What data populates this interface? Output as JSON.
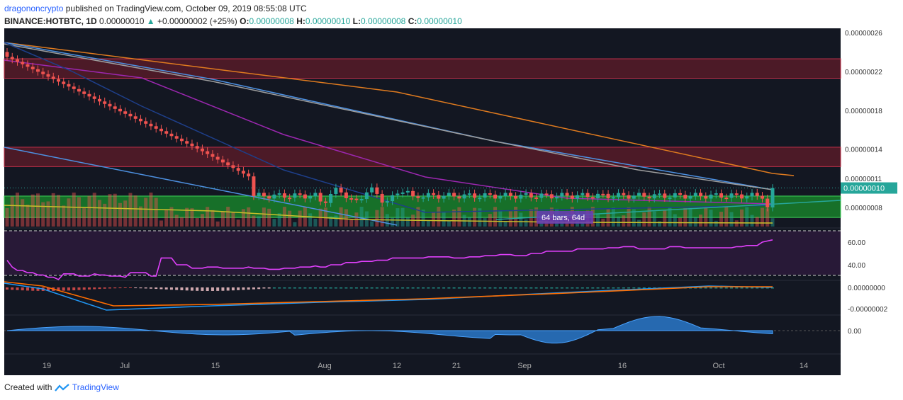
{
  "header": {
    "username": "dragononcrypto",
    "published_text": " published on TradingView.com, October 09, 2019 08:55:08 UTC",
    "symbol": "BINANCE:HOTBTC, 1D",
    "last": "0.00000010",
    "change": "+0.00000002 (+25%)",
    "o_label": "O:",
    "o_val": "0.00000008",
    "h_label": "H:",
    "h_val": "0.00000010",
    "l_label": "L:",
    "l_val": "0.00000008",
    "c_label": "C:",
    "c_val": "0.00000010",
    "change_color": "#26a69a"
  },
  "footer": {
    "created_with": "Created with",
    "brand": "TradingView"
  },
  "chart_data": [
    {
      "type": "candlestick",
      "pane": "price",
      "price_axis_labels": [
        "0.00000026",
        "0.00000022",
        "0.00000018",
        "0.00000014",
        "0.00000011",
        "0.00000008"
      ],
      "price_axis_values": [
        2.6e-07,
        2.2e-07,
        1.8e-07,
        1.4e-07,
        1.1e-07,
        8e-08
      ],
      "last_price_label": "0.00000010",
      "last_price_value": 1e-07,
      "x_tick_labels": [
        "19",
        "Jul",
        "15",
        "Aug",
        "12",
        "21",
        "Sep",
        "16",
        "Oct",
        "14"
      ],
      "annotation": "64 bars, 64d",
      "zones": [
        {
          "kind": "resistance",
          "from": 2.13e-07,
          "to": 2.33e-07,
          "color": "#7b1e2b"
        },
        {
          "kind": "resistance",
          "from": 1.22e-07,
          "to": 1.42e-07,
          "color": "#7b1e2b"
        },
        {
          "kind": "support",
          "from": 6.97e-08,
          "to": 9.17e-08,
          "color": "#1a8f2c"
        }
      ],
      "colors": {
        "up": "#26a69a",
        "down": "#ef5350",
        "background": "#131722"
      }
    },
    {
      "type": "line",
      "pane": "rsi",
      "axis_labels": [
        "60.00",
        "40.00"
      ],
      "axis_values": [
        60,
        40
      ],
      "series": [
        {
          "color": "#e040fb",
          "values": [
            44,
            38,
            35,
            35,
            33,
            33,
            31,
            31,
            29,
            29,
            27,
            32,
            32,
            32,
            30,
            30,
            30,
            32,
            31,
            31,
            30,
            30,
            30,
            29,
            33,
            33,
            33,
            33,
            30,
            30,
            46,
            46,
            46,
            40,
            40,
            40,
            37,
            37,
            37,
            38,
            38,
            38,
            37,
            37,
            37,
            37,
            37,
            38,
            37,
            37,
            37,
            36,
            36,
            36,
            37,
            37,
            37,
            38,
            38,
            38,
            39,
            38,
            38,
            40,
            40,
            40,
            42,
            42,
            42,
            43,
            43,
            43,
            44,
            44,
            44,
            46,
            46,
            46,
            46,
            46,
            46,
            46,
            47,
            47,
            47,
            47,
            47,
            46,
            46,
            46,
            47,
            47,
            47,
            48,
            48,
            48,
            49,
            49,
            49,
            48,
            48,
            48,
            50,
            50,
            50,
            52,
            52,
            52,
            52,
            52,
            52,
            54,
            54,
            54,
            54,
            54,
            54,
            55,
            55,
            55,
            56,
            56,
            56,
            54,
            54,
            54,
            54,
            54,
            54,
            56,
            56,
            56,
            55,
            55,
            55,
            55,
            55,
            55,
            55,
            55,
            55,
            55,
            56,
            56,
            57,
            57,
            57,
            60,
            61,
            62
          ]
        }
      ]
    },
    {
      "type": "line",
      "pane": "macd",
      "axis_labels": [
        "0.00000000",
        "-0.00000002"
      ],
      "axis_values": [
        0,
        -2e-08
      ]
    },
    {
      "type": "area",
      "pane": "oscillator",
      "axis_labels": [
        "0.00"
      ],
      "axis_values": [
        0
      ]
    }
  ]
}
